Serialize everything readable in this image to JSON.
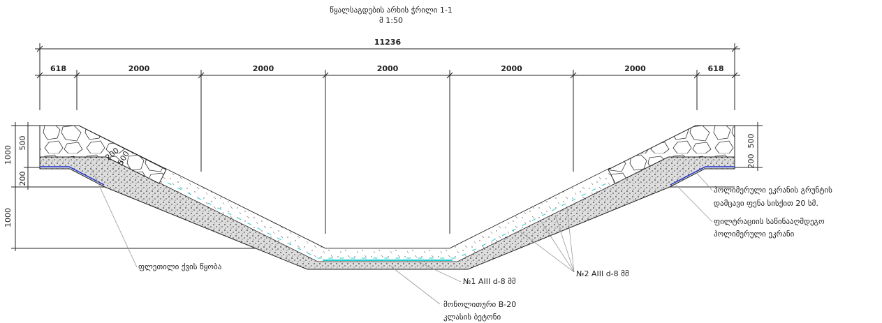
{
  "header": {
    "title": "წყალსაგდების არხის ჭრილი 1-1",
    "scale": "მ 1:50"
  },
  "dimensions": {
    "total": "11236",
    "segments": [
      "618",
      "2000",
      "2000",
      "2000",
      "2000",
      "2000",
      "618"
    ],
    "left": [
      "1000",
      "500",
      "200",
      "1000"
    ],
    "right": [
      "500",
      "200"
    ]
  },
  "stone_labels": [
    "200",
    "500"
  ],
  "annotations": [
    {
      "lines": [
        "პოლიმერული ეკრანის გრუნტის",
        "დამცავი ფენა სისქით 20 სმ."
      ]
    },
    {
      "lines": [
        "ფილტრაციის საწინააღმდეგო",
        "პოლიმერული ეკრანი"
      ]
    },
    {
      "lines": [
        "ფლეთილი ქვის წყობა"
      ]
    },
    {
      "lines": [
        "№1 AIII d-8 მმ"
      ]
    },
    {
      "lines": [
        "№2 AIII d-8 მმ"
      ]
    },
    {
      "lines": [
        "მონოლითური B-20",
        "კლასის ბეტონი"
      ]
    }
  ]
}
